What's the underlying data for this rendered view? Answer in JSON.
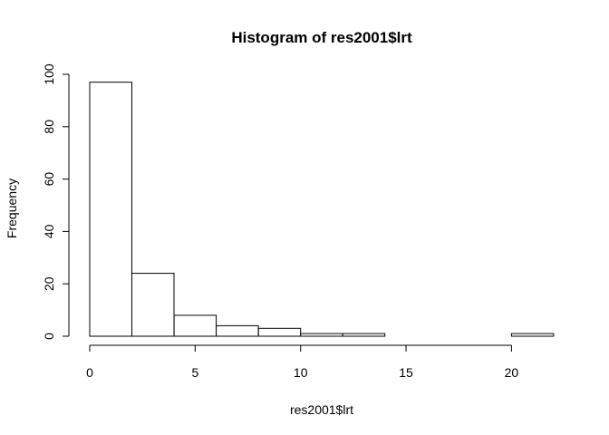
{
  "chart_data": {
    "type": "bar",
    "title": "Histogram of res2001$lrt",
    "xlabel": "res2001$lrt",
    "ylabel": "Frequency",
    "bins": [
      {
        "start": 0,
        "end": 2,
        "count": 97
      },
      {
        "start": 2,
        "end": 4,
        "count": 24
      },
      {
        "start": 4,
        "end": 6,
        "count": 8
      },
      {
        "start": 6,
        "end": 8,
        "count": 4
      },
      {
        "start": 8,
        "end": 10,
        "count": 3
      },
      {
        "start": 10,
        "end": 12,
        "count": 1
      },
      {
        "start": 12,
        "end": 14,
        "count": 1
      },
      {
        "start": 14,
        "end": 16,
        "count": 0
      },
      {
        "start": 16,
        "end": 18,
        "count": 0
      },
      {
        "start": 18,
        "end": 20,
        "count": 0
      },
      {
        "start": 20,
        "end": 22,
        "count": 1
      }
    ],
    "xlim": [
      0,
      22
    ],
    "ylim": [
      0,
      100
    ],
    "xticks": [
      "0",
      "5",
      "10",
      "15",
      "20"
    ],
    "yticks": [
      "0",
      "20",
      "40",
      "60",
      "80",
      "100"
    ],
    "grid": false,
    "legend": "none"
  }
}
